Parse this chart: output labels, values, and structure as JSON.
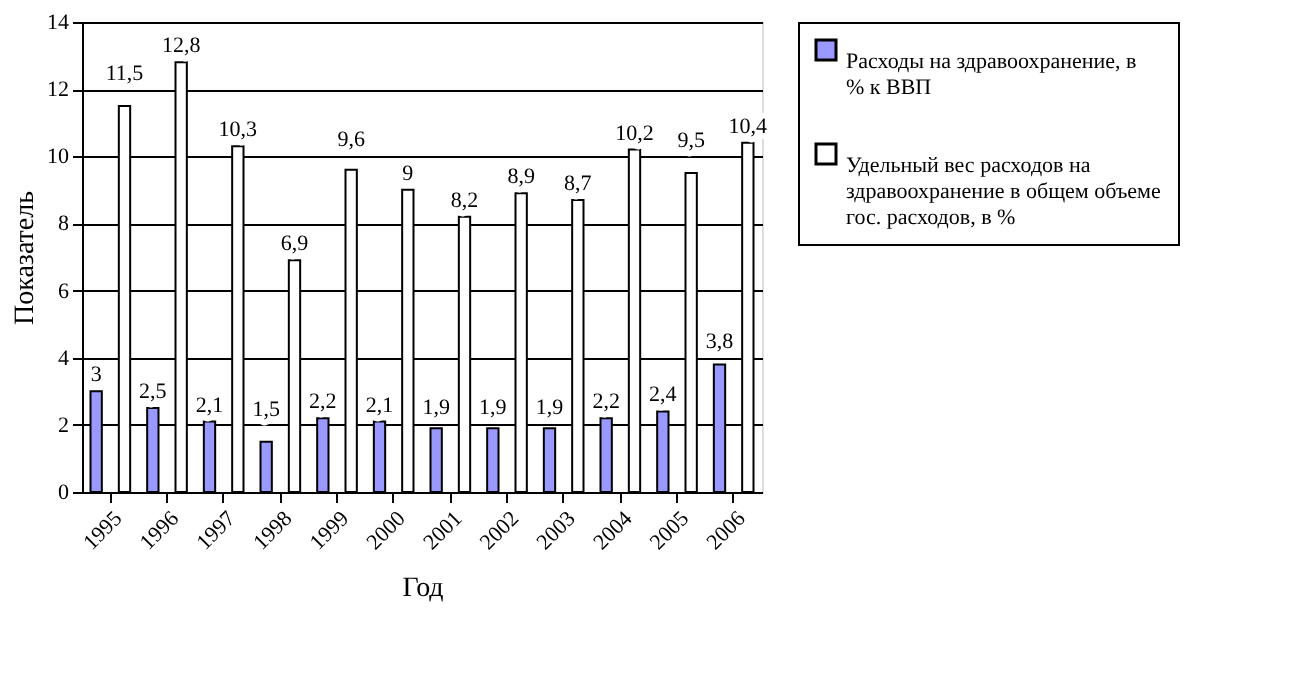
{
  "chart_data": {
    "type": "bar",
    "xlabel": "Год",
    "ylabel": "Показатель",
    "categories": [
      "1995",
      "1996",
      "1997",
      "1998",
      "1999",
      "2000",
      "2001",
      "2002",
      "2003",
      "2004",
      "2005",
      "2006"
    ],
    "series": [
      {
        "name": "Расходы на здравоохранение, в % к ВВП",
        "color": "#9999ff",
        "values": [
          3,
          2.5,
          2.1,
          1.5,
          2.2,
          2.1,
          1.9,
          1.9,
          1.9,
          2.2,
          2.4,
          3.8
        ],
        "value_labels": [
          "3",
          "2,5",
          "2,1",
          "1,5",
          "2,2",
          "2,1",
          "1,9",
          "1,9",
          "1,9",
          "2,2",
          "2,4",
          "3,8"
        ]
      },
      {
        "name": "Удельный вес расходов на здравоохранение в общем объеме гос. расходов, в %",
        "color": "#ffffff",
        "values": [
          11.5,
          12.8,
          10.3,
          6.9,
          9.6,
          9,
          8.2,
          8.9,
          8.7,
          10.2,
          9.5,
          10.4
        ],
        "value_labels": [
          "11,5",
          "12,8",
          "10,3",
          "6,9",
          "9,6",
          "9",
          "8,2",
          "8,9",
          "8,7",
          "10,2",
          "9,5",
          "10,4"
        ]
      }
    ],
    "ylim": [
      0,
      14
    ],
    "yticks": [
      0,
      2,
      4,
      6,
      8,
      10,
      12,
      14
    ],
    "grid": "y",
    "legend": "right"
  }
}
